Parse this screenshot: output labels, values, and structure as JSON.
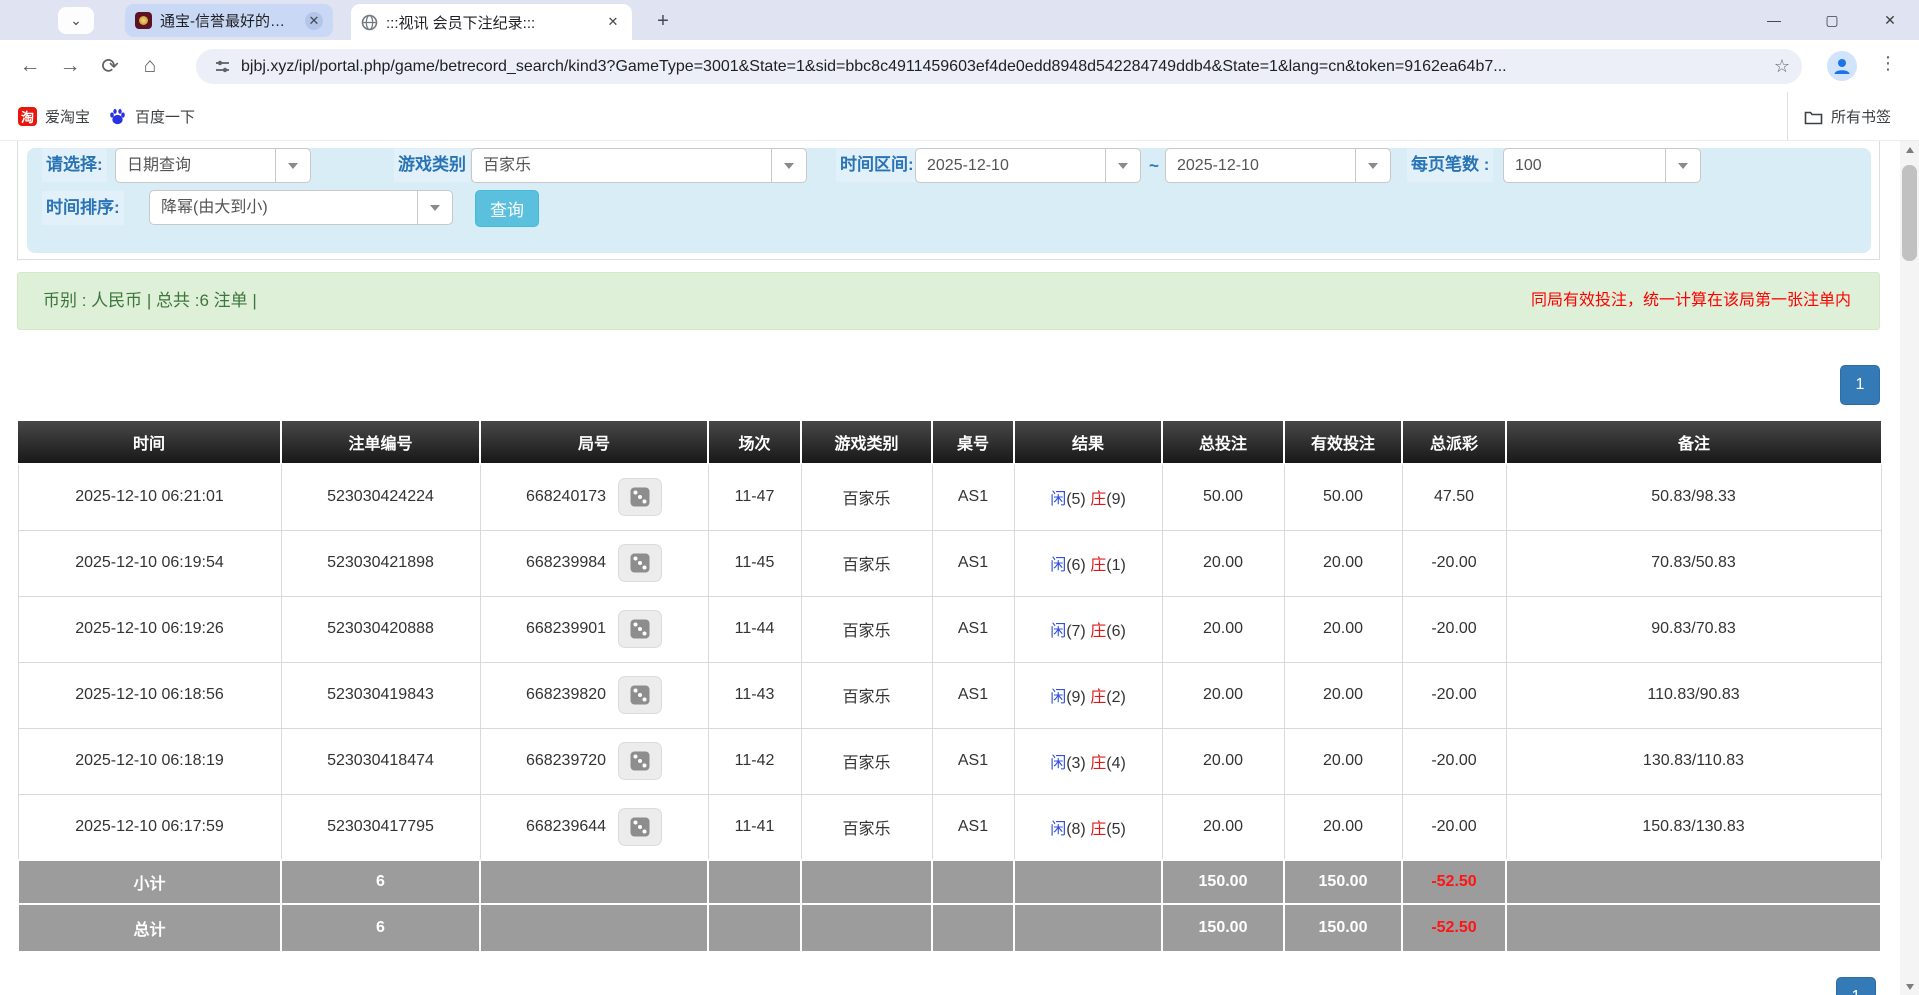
{
  "browser": {
    "tabs": [
      {
        "title": "通宝-信誉最好的网上游戏平台",
        "close": "✕"
      },
      {
        "title": ":::视讯 会员下注纪录:::",
        "close": "✕"
      }
    ],
    "new_tab": "+",
    "window_controls": {
      "minimize": "—",
      "maximize": "▢",
      "close": "✕"
    },
    "nav": {
      "back": "←",
      "forward": "→",
      "refresh": "⟳",
      "home": "⌂"
    },
    "url": "bjbj.xyz/ipl/portal.php/game/betrecord_search/kind3?GameType=3001&State=1&sid=bbc8c4911459603ef4de0edd8948d542284749ddb4&State=1&lang=cn&token=9162ea64b7...",
    "star": "☆",
    "kebab": "⋮",
    "tab_search_chevron": "⌄",
    "bookmarks": [
      {
        "label": "爱淘宝",
        "icon": "taobao-icon",
        "icon_glyph": "淘"
      },
      {
        "label": "百度一下",
        "icon": "baidu-paw-icon"
      }
    ],
    "all_bookmarks_label": "所有书签"
  },
  "filters": {
    "select_label": "请选择:",
    "select_value": "日期查询",
    "game_type_label": "游戏类别",
    "game_type_value": "百家乐",
    "time_range_label": "时间区间:",
    "date_from": "2025-12-10",
    "tilde": "~",
    "date_to": "2025-12-10",
    "page_size_label": "每页笔数 :",
    "page_size_value": "100",
    "sort_label": "时间排序:",
    "sort_value": "降幂(由大到小)",
    "search_button": "查询"
  },
  "summary": {
    "left": "币别 : 人民币 | 总共 :6 注单 |",
    "right_notice": "同局有效投注，统一计算在该局第一张注单内"
  },
  "pagination": {
    "page": "1"
  },
  "table": {
    "headers": [
      "时间",
      "注单编号",
      "局号",
      "场次",
      "游戏类别",
      "桌号",
      "结果",
      "总投注",
      "有效投注",
      "总派彩",
      "备注"
    ],
    "rows": [
      {
        "time": "2025-12-10 06:21:01",
        "bet_id": "523030424224",
        "round": "668240173",
        "session": "11-47",
        "game": "百家乐",
        "table_no": "AS1",
        "result": {
          "p": "闲",
          "pn": "(5)",
          "b": "庄",
          "bn": "(9)"
        },
        "total_bet": "50.00",
        "valid_bet": "50.00",
        "payout": "47.50",
        "note": "50.83/98.33"
      },
      {
        "time": "2025-12-10 06:19:54",
        "bet_id": "523030421898",
        "round": "668239984",
        "session": "11-45",
        "game": "百家乐",
        "table_no": "AS1",
        "result": {
          "p": "闲",
          "pn": "(6)",
          "b": "庄",
          "bn": "(1)"
        },
        "total_bet": "20.00",
        "valid_bet": "20.00",
        "payout": "-20.00",
        "note": "70.83/50.83"
      },
      {
        "time": "2025-12-10 06:19:26",
        "bet_id": "523030420888",
        "round": "668239901",
        "session": "11-44",
        "game": "百家乐",
        "table_no": "AS1",
        "result": {
          "p": "闲",
          "pn": "(7)",
          "b": "庄",
          "bn": "(6)"
        },
        "total_bet": "20.00",
        "valid_bet": "20.00",
        "payout": "-20.00",
        "note": "90.83/70.83"
      },
      {
        "time": "2025-12-10 06:18:56",
        "bet_id": "523030419843",
        "round": "668239820",
        "session": "11-43",
        "game": "百家乐",
        "table_no": "AS1",
        "result": {
          "p": "闲",
          "pn": "(9)",
          "b": "庄",
          "bn": "(2)"
        },
        "total_bet": "20.00",
        "valid_bet": "20.00",
        "payout": "-20.00",
        "note": "110.83/90.83"
      },
      {
        "time": "2025-12-10 06:18:19",
        "bet_id": "523030418474",
        "round": "668239720",
        "session": "11-42",
        "game": "百家乐",
        "table_no": "AS1",
        "result": {
          "p": "闲",
          "pn": "(3)",
          "b": "庄",
          "bn": "(4)"
        },
        "total_bet": "20.00",
        "valid_bet": "20.00",
        "payout": "-20.00",
        "note": "130.83/110.83"
      },
      {
        "time": "2025-12-10 06:17:59",
        "bet_id": "523030417795",
        "round": "668239644",
        "session": "11-41",
        "game": "百家乐",
        "table_no": "AS1",
        "result": {
          "p": "闲",
          "pn": "(8)",
          "b": "庄",
          "bn": "(5)"
        },
        "total_bet": "20.00",
        "valid_bet": "20.00",
        "payout": "-20.00",
        "note": "150.83/130.83"
      }
    ],
    "subtotal": {
      "label": "小计",
      "count": "6",
      "total_bet": "150.00",
      "valid_bet": "150.00",
      "payout": "-52.50"
    },
    "total": {
      "label": "总计",
      "count": "6",
      "total_bet": "150.00",
      "valid_bet": "150.00",
      "payout": "-52.50"
    }
  },
  "colors": {
    "accent_blue": "#337ab7",
    "search_button_bg": "#5bc0de",
    "filter_panel_bg": "#d9edf7",
    "summary_bg": "#dff0d8",
    "summary_text": "#3c763d",
    "notice_red": "#ff0000",
    "header_bg": "#1b1b1b",
    "player_blue": "#3050dd",
    "banker_red": "#e01818",
    "negative_red": "#ee0000",
    "value_blue": "#2f6bd6"
  }
}
